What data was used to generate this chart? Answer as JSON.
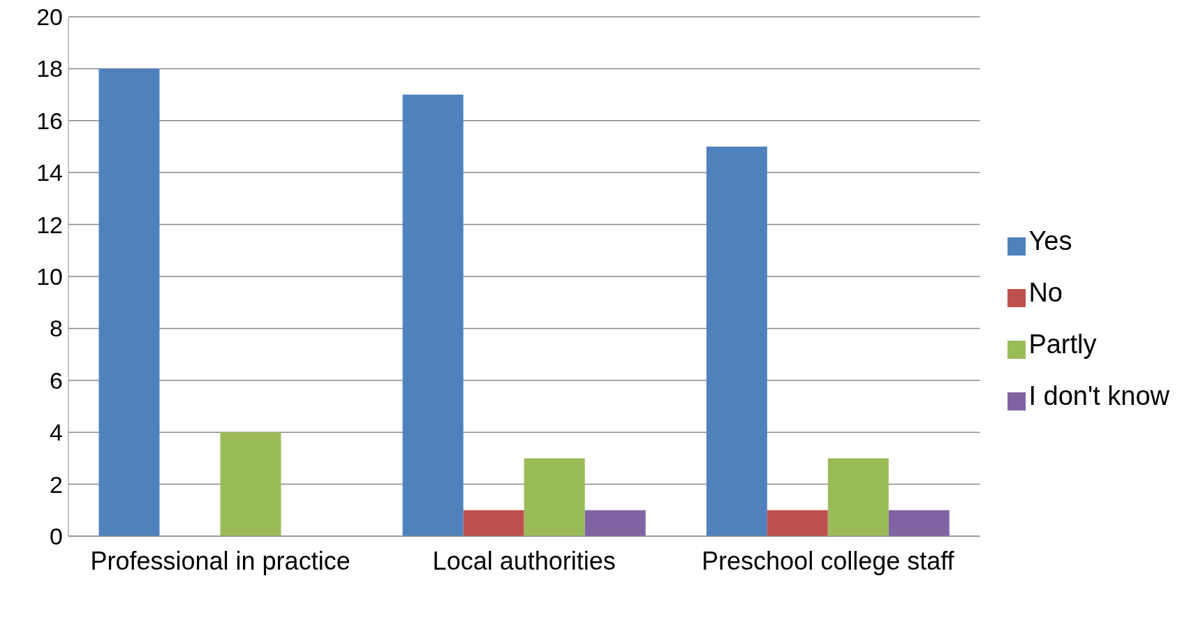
{
  "chart_data": {
    "type": "bar",
    "categories": [
      "Professional in practice",
      "Local authorities",
      "Preschool college staff"
    ],
    "series": [
      {
        "name": "Yes",
        "color": "#4f81bd",
        "values": [
          18,
          17,
          15
        ]
      },
      {
        "name": "No",
        "color": "#c0504d",
        "values": [
          0,
          1,
          1
        ]
      },
      {
        "name": "Partly",
        "color": "#9bbb59",
        "values": [
          4,
          3,
          3
        ]
      },
      {
        "name": "I don't know",
        "color": "#8064a2",
        "values": [
          0,
          1,
          1
        ]
      }
    ],
    "ylim": [
      0,
      20
    ],
    "yticks": [
      0,
      2,
      4,
      6,
      8,
      10,
      12,
      14,
      16,
      18,
      20
    ],
    "grid": "y",
    "legend": "right"
  }
}
